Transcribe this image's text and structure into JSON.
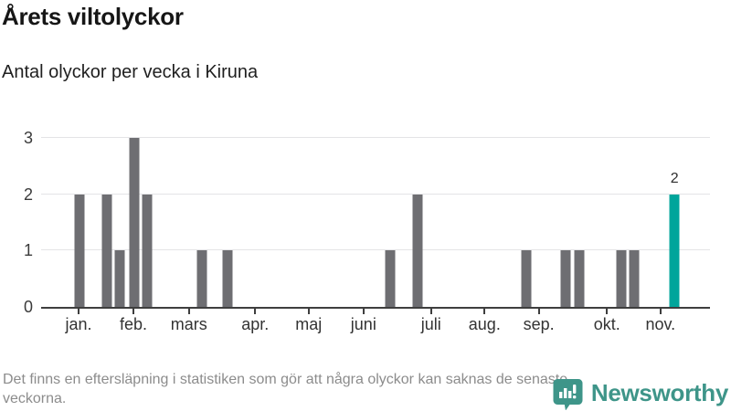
{
  "header": {
    "title": "Årets viltolyckor",
    "subtitle": "Antal olyckor per vecka i Kiruna"
  },
  "chart_data": {
    "type": "bar",
    "title": "Årets viltolyckor",
    "subtitle": "Antal olyckor per vecka i Kiruna",
    "x_unit": "vecka",
    "ylim": [
      0,
      3
    ],
    "yticks": [
      0,
      1,
      2,
      3
    ],
    "grid": true,
    "legend": "none",
    "months": [
      {
        "label": "jan.",
        "pos": 0.056
      },
      {
        "label": "feb.",
        "pos": 0.138
      },
      {
        "label": "mars",
        "pos": 0.221
      },
      {
        "label": "apr.",
        "pos": 0.32
      },
      {
        "label": "maj",
        "pos": 0.4
      },
      {
        "label": "juni",
        "pos": 0.482
      },
      {
        "label": "juli",
        "pos": 0.583
      },
      {
        "label": "aug.",
        "pos": 0.663
      },
      {
        "label": "sep.",
        "pos": 0.744
      },
      {
        "label": "okt.",
        "pos": 0.846
      },
      {
        "label": "nov.",
        "pos": 0.926
      }
    ],
    "bars": [
      {
        "pos": 0.057,
        "value": 2
      },
      {
        "pos": 0.098,
        "value": 2
      },
      {
        "pos": 0.118,
        "value": 1
      },
      {
        "pos": 0.139,
        "value": 3
      },
      {
        "pos": 0.159,
        "value": 2
      },
      {
        "pos": 0.24,
        "value": 1
      },
      {
        "pos": 0.279,
        "value": 1
      },
      {
        "pos": 0.522,
        "value": 1
      },
      {
        "pos": 0.563,
        "value": 2
      },
      {
        "pos": 0.725,
        "value": 1
      },
      {
        "pos": 0.784,
        "value": 1
      },
      {
        "pos": 0.805,
        "value": 1
      },
      {
        "pos": 0.867,
        "value": 1
      },
      {
        "pos": 0.886,
        "value": 1
      },
      {
        "pos": 0.947,
        "value": 2,
        "highlight": true,
        "label": "2"
      }
    ],
    "colors": {
      "bar": "#6e6e72",
      "highlight": "#00a59b",
      "grid": "#e4e4e6",
      "axis": "#3e3e3e",
      "tick_text": "#3b3b3b",
      "note_text": "#8c8c8c",
      "brand": "#3e9589"
    }
  },
  "footer": {
    "note": "Det finns en eftersläpning i statistiken som gör att några olyckor kan saknas de senaste veckorna.",
    "brand": "Newsworthy"
  }
}
